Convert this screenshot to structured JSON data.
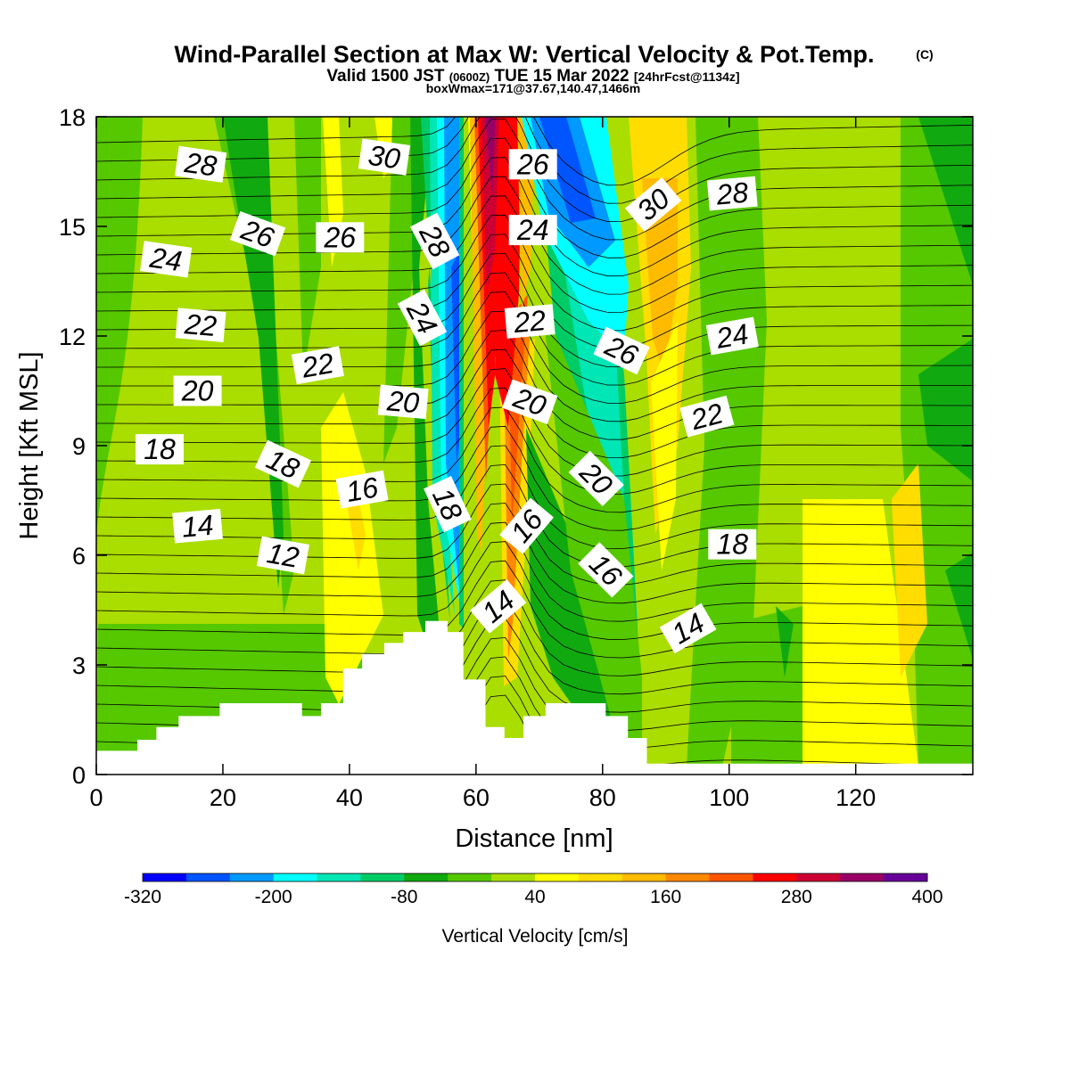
{
  "header": {
    "title_main": "Wind-Parallel Section at Max W: Vertical Velocity & Pot.Temp.",
    "title_mark": "(C)",
    "valid_a": "Valid 1500 JST",
    "valid_b": "(0600Z)",
    "valid_c": "TUE 15 Mar 2022",
    "valid_d": "[24hrFcst@1134z]",
    "box_note": "boxWmax=171@37.67,140.47,1466m"
  },
  "chart_data": {
    "type": "heatmap",
    "title": "Wind-Parallel Section at Max W: Vertical Velocity & Pot.Temp.",
    "xlabel": "Distance [nm]",
    "ylabel": "Height [Kft MSL]",
    "xlim": [
      0,
      138.5
    ],
    "ylim": [
      0,
      18
    ],
    "xticks": [
      0,
      20,
      40,
      60,
      80,
      100,
      120
    ],
    "yticks": [
      0,
      3,
      6,
      9,
      12,
      15,
      18
    ],
    "colorbar": {
      "label": "Vertical Velocity [cm/s]",
      "tick_labels": [
        -320,
        -200,
        -80,
        40,
        160,
        280,
        400
      ],
      "colors": [
        "#0000ff",
        "#0055ff",
        "#0099ff",
        "#00ffff",
        "#00e6b4",
        "#00cc66",
        "#10aa10",
        "#55c800",
        "#aadd00",
        "#ffff00",
        "#ffdd00",
        "#ffbb00",
        "#ff8800",
        "#ff5500",
        "#ff0000",
        "#cc0033",
        "#990066",
        "#660099"
      ]
    },
    "vertical_velocity_bands_cm_s": [
      {
        "x_center": 4,
        "value": -20
      },
      {
        "x_center": 22,
        "value": -60
      },
      {
        "x_center": 38,
        "value": 60
      },
      {
        "x_center": 54,
        "value": -260
      },
      {
        "x_center": 62,
        "value": 380
      },
      {
        "x_center": 66,
        "value": 240
      },
      {
        "x_center": 72,
        "value": -230
      },
      {
        "x_center": 80,
        "value": -60
      },
      {
        "x_center": 90,
        "value": 150
      },
      {
        "x_center": 100,
        "value": 0
      },
      {
        "x_center": 125,
        "value": -20
      }
    ],
    "theta_contour_labels": [
      {
        "value": "28",
        "x": 16.5,
        "y": 16.7,
        "angle": 8
      },
      {
        "value": "30",
        "x": 45.5,
        "y": 16.9,
        "angle": 8
      },
      {
        "value": "26",
        "x": 69,
        "y": 16.7,
        "angle": 0
      },
      {
        "value": "30",
        "x": 88,
        "y": 15.6,
        "angle": -40
      },
      {
        "value": "28",
        "x": 100.5,
        "y": 15.9,
        "angle": -5
      },
      {
        "value": "26",
        "x": 25.5,
        "y": 14.8,
        "angle": 20
      },
      {
        "value": "26",
        "x": 38.5,
        "y": 14.7,
        "angle": 0
      },
      {
        "value": "28",
        "x": 53.5,
        "y": 14.6,
        "angle": 62
      },
      {
        "value": "24",
        "x": 69,
        "y": 14.9,
        "angle": 0
      },
      {
        "value": "24",
        "x": 11,
        "y": 14.1,
        "angle": 8
      },
      {
        "value": "24",
        "x": 51.5,
        "y": 12.5,
        "angle": 62
      },
      {
        "value": "22",
        "x": 68.5,
        "y": 12.4,
        "angle": -5
      },
      {
        "value": "22",
        "x": 16.5,
        "y": 12.3,
        "angle": 5
      },
      {
        "value": "24",
        "x": 100.5,
        "y": 12.0,
        "angle": -10
      },
      {
        "value": "26",
        "x": 83,
        "y": 11.6,
        "angle": 25
      },
      {
        "value": "22",
        "x": 35,
        "y": 11.2,
        "angle": -10
      },
      {
        "value": "20",
        "x": 16,
        "y": 10.5,
        "angle": 0
      },
      {
        "value": "20",
        "x": 48.5,
        "y": 10.2,
        "angle": 5
      },
      {
        "value": "20",
        "x": 68.5,
        "y": 10.2,
        "angle": 20
      },
      {
        "value": "22",
        "x": 96.5,
        "y": 9.8,
        "angle": -15
      },
      {
        "value": "18",
        "x": 10,
        "y": 8.9,
        "angle": 0
      },
      {
        "value": "18",
        "x": 29.5,
        "y": 8.5,
        "angle": 25
      },
      {
        "value": "20",
        "x": 79,
        "y": 8.1,
        "angle": 45
      },
      {
        "value": "16",
        "x": 42,
        "y": 7.8,
        "angle": -10
      },
      {
        "value": "18",
        "x": 55.5,
        "y": 7.4,
        "angle": 65
      },
      {
        "value": "16",
        "x": 68,
        "y": 6.8,
        "angle": -50
      },
      {
        "value": "14",
        "x": 16,
        "y": 6.8,
        "angle": -5
      },
      {
        "value": "18",
        "x": 100.5,
        "y": 6.3,
        "angle": 0
      },
      {
        "value": "12",
        "x": 29.5,
        "y": 6.0,
        "angle": 10
      },
      {
        "value": "16",
        "x": 80.5,
        "y": 5.6,
        "angle": 45
      },
      {
        "value": "14",
        "x": 63.5,
        "y": 4.6,
        "angle": -40
      },
      {
        "value": "14",
        "x": 93.5,
        "y": 4.0,
        "angle": -30
      }
    ],
    "terrain_kft": [
      {
        "x": 0,
        "h": 0.65
      },
      {
        "x": 6.5,
        "h": 0.95
      },
      {
        "x": 9.5,
        "h": 1.3
      },
      {
        "x": 13,
        "h": 1.6
      },
      {
        "x": 19.5,
        "h": 1.95
      },
      {
        "x": 32.5,
        "h": 1.6
      },
      {
        "x": 35.5,
        "h": 1.95
      },
      {
        "x": 39,
        "h": 2.9
      },
      {
        "x": 42,
        "h": 3.3
      },
      {
        "x": 45.5,
        "h": 3.6
      },
      {
        "x": 48.5,
        "h": 3.9
      },
      {
        "x": 52,
        "h": 4.2
      },
      {
        "x": 55.5,
        "h": 3.9
      },
      {
        "x": 58,
        "h": 2.6
      },
      {
        "x": 61.5,
        "h": 1.3
      },
      {
        "x": 64.5,
        "h": 1.0
      },
      {
        "x": 67.5,
        "h": 1.6
      },
      {
        "x": 71,
        "h": 1.95
      },
      {
        "x": 80.5,
        "h": 1.6
      },
      {
        "x": 84,
        "h": 1.0
      },
      {
        "x": 87,
        "h": 0.3
      },
      {
        "x": 138.5,
        "h": 0.3
      }
    ]
  }
}
